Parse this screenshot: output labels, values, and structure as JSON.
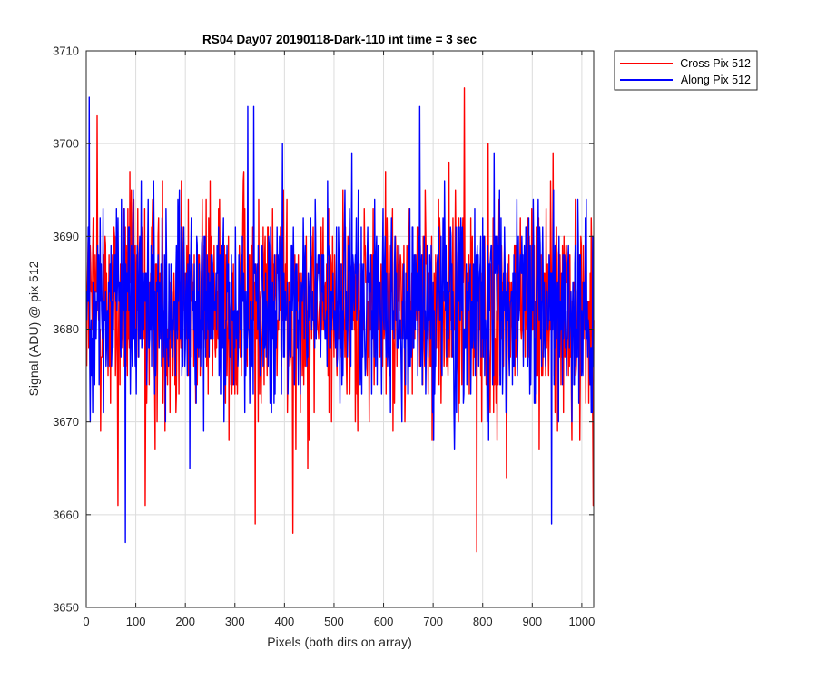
{
  "chart_data": {
    "type": "line",
    "title": "RS04 Day07 20190118-Dark-110 int time = 3 sec",
    "xlabel": "Pixels (both dirs on array)",
    "ylabel": "Signal (ADU) @ pix 512",
    "xlim": [
      0,
      1024
    ],
    "ylim": [
      3650,
      3710
    ],
    "xticks": [
      0,
      100,
      200,
      300,
      400,
      500,
      600,
      700,
      800,
      900,
      1000
    ],
    "yticks": [
      3650,
      3660,
      3670,
      3680,
      3690,
      3700,
      3710
    ],
    "grid": true,
    "legend_position": "outside-top-right",
    "series": [
      {
        "name": "Cross Pix 512",
        "color": "#ff0000",
        "mean": 3682.5,
        "std": 6.0,
        "min": 3656,
        "max": 3706,
        "n_points": 1024,
        "notable_points": [
          {
            "x": 21,
            "y": 3703
          },
          {
            "x": 63,
            "y": 3661
          },
          {
            "x": 118,
            "y": 3661
          },
          {
            "x": 340,
            "y": 3659
          },
          {
            "x": 416,
            "y": 3658
          },
          {
            "x": 762,
            "y": 3706
          },
          {
            "x": 787,
            "y": 3656
          },
          {
            "x": 1022,
            "y": 3661
          }
        ]
      },
      {
        "name": "Along Pix 512",
        "color": "#0000ff",
        "mean": 3682.5,
        "std": 5.5,
        "min": 3657,
        "max": 3705,
        "n_points": 1024,
        "notable_points": [
          {
            "x": 5,
            "y": 3705
          },
          {
            "x": 78,
            "y": 3657
          },
          {
            "x": 325,
            "y": 3704
          },
          {
            "x": 337,
            "y": 3704
          },
          {
            "x": 672,
            "y": 3704
          },
          {
            "x": 938,
            "y": 3659
          }
        ]
      }
    ]
  }
}
